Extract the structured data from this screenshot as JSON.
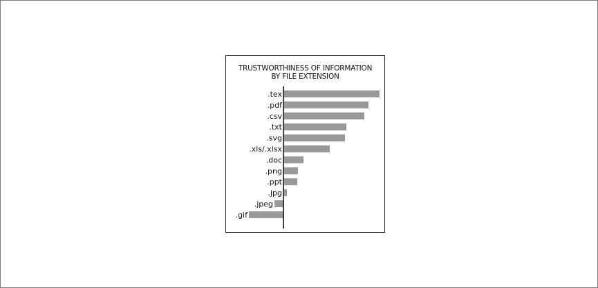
{
  "chart_data": {
    "type": "bar",
    "orientation": "horizontal",
    "title_lines": [
      "TRUSTWORTHINESS OF INFORMATION",
      "BY FILE EXTENSION"
    ],
    "categories": [
      ".tex",
      ".pdf",
      ".csv",
      ".txt",
      ".svg",
      ".xls/.xlsx",
      ".doc",
      ".png",
      ".ppt",
      ".jpg",
      ".jpeg",
      ".gif"
    ],
    "values": [
      138,
      122,
      116,
      90,
      88,
      66,
      28,
      20,
      19,
      4,
      -13,
      -50
    ],
    "xlim": [
      -55,
      140
    ],
    "grid": false,
    "legend": "none",
    "bar_color": "#999999",
    "axis_color": "#111111"
  }
}
